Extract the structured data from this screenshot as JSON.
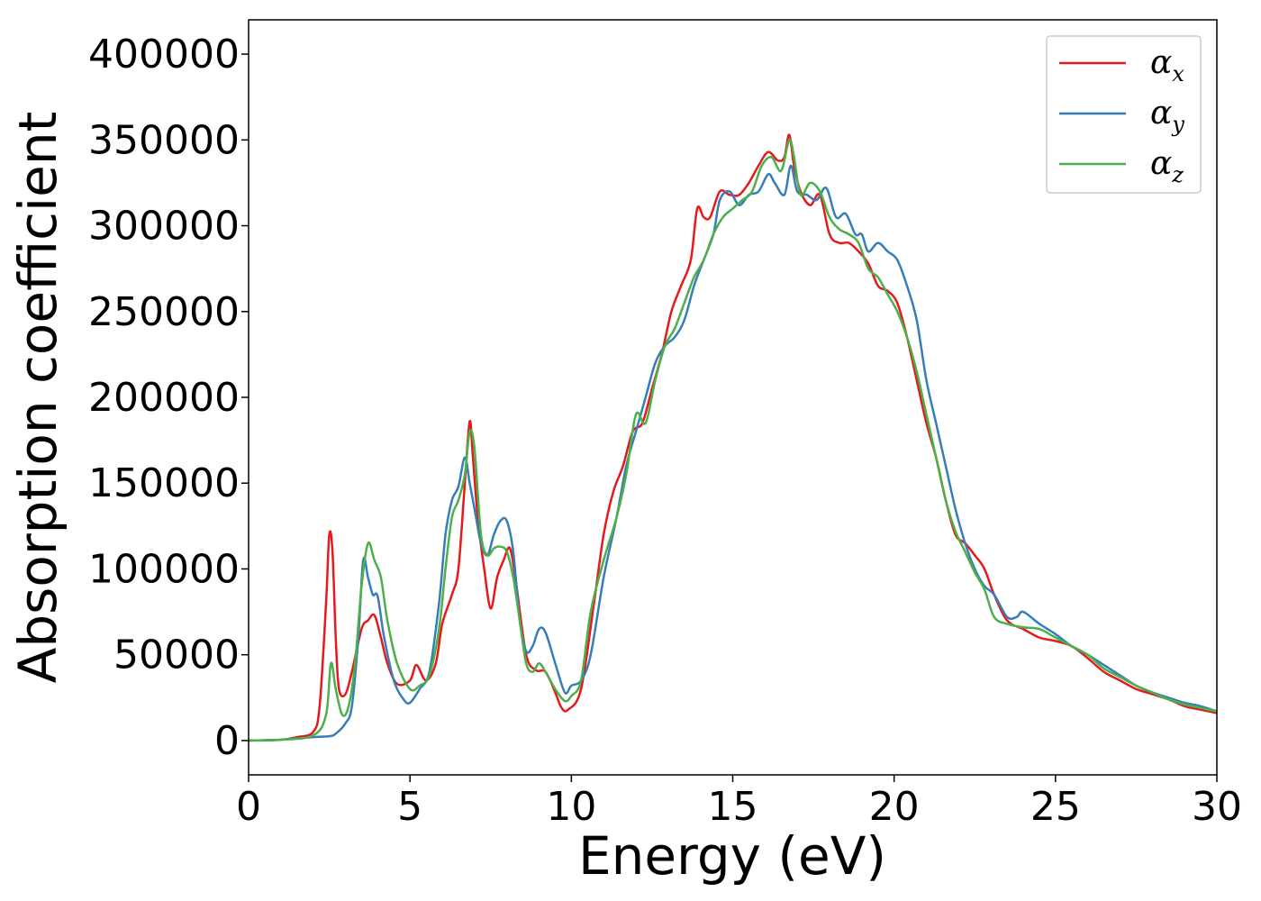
{
  "chart_data": {
    "type": "line",
    "title": "",
    "xlabel": "Energy (eV)",
    "ylabel": "Absorption coefficient",
    "xlim": [
      0,
      30
    ],
    "ylim": [
      -20000,
      420000
    ],
    "xticks": [
      0,
      5,
      10,
      15,
      20,
      25,
      30
    ],
    "xtick_labels": [
      "0",
      "5",
      "10",
      "15",
      "20",
      "25",
      "30"
    ],
    "yticks": [
      0,
      50000,
      100000,
      150000,
      200000,
      250000,
      300000,
      350000,
      400000
    ],
    "ytick_labels": [
      "0",
      "50000",
      "100000",
      "150000",
      "200000",
      "250000",
      "300000",
      "350000",
      "400000"
    ],
    "grid": false,
    "legend_position": "top-right",
    "series": [
      {
        "name": "α_x",
        "label_base": "α",
        "label_sub": "x",
        "color": "#e41a1c",
        "x": [
          0,
          1,
          1.5,
          2,
          2.2,
          2.4,
          2.5,
          2.6,
          2.7,
          2.8,
          3.0,
          3.2,
          3.5,
          3.7,
          3.9,
          4.1,
          4.3,
          4.6,
          5.0,
          5.2,
          5.5,
          5.8,
          6.0,
          6.3,
          6.5,
          6.7,
          6.85,
          6.95,
          7.1,
          7.3,
          7.5,
          7.7,
          7.9,
          8.1,
          8.3,
          8.6,
          8.9,
          9.2,
          9.5,
          9.7,
          9.9,
          10.3,
          10.7,
          11.0,
          11.3,
          11.6,
          11.9,
          12.2,
          12.5,
          12.8,
          13.1,
          13.4,
          13.7,
          13.9,
          14.1,
          14.3,
          14.6,
          14.9,
          15.2,
          15.5,
          15.8,
          16.1,
          16.4,
          16.6,
          16.75,
          16.9,
          17.1,
          17.4,
          17.7,
          18.0,
          18.3,
          18.6,
          18.9,
          19.2,
          19.5,
          19.8,
          20.1,
          20.4,
          20.7,
          21.0,
          21.3,
          21.6,
          21.9,
          22.2,
          22.5,
          22.8,
          23.1,
          23.5,
          24.0,
          24.5,
          25.0,
          25.5,
          26.0,
          26.5,
          27.0,
          27.5,
          28.0,
          28.5,
          29.0,
          29.5,
          30.0
        ],
        "y": [
          0,
          500,
          2000,
          5000,
          20000,
          80000,
          120000,
          110000,
          60000,
          30000,
          27000,
          40000,
          65000,
          70000,
          73000,
          60000,
          45000,
          33000,
          35000,
          44000,
          35000,
          45000,
          68000,
          85000,
          100000,
          150000,
          186000,
          165000,
          130000,
          100000,
          77000,
          95000,
          105000,
          112000,
          90000,
          50000,
          41000,
          40000,
          28000,
          19000,
          18000,
          30000,
          80000,
          120000,
          145000,
          160000,
          180000,
          185000,
          205000,
          225000,
          250000,
          265000,
          280000,
          310000,
          305000,
          305000,
          320000,
          318000,
          318000,
          325000,
          335000,
          343000,
          338000,
          340000,
          353000,
          335000,
          320000,
          312000,
          318000,
          295000,
          290000,
          290000,
          285000,
          278000,
          265000,
          262000,
          255000,
          235000,
          210000,
          185000,
          165000,
          140000,
          120000,
          115000,
          108000,
          100000,
          85000,
          70000,
          65000,
          60000,
          58000,
          55000,
          48000,
          40000,
          35000,
          30000,
          27000,
          24000,
          20000,
          18000,
          16000
        ]
      },
      {
        "name": "α_y",
        "label_base": "α",
        "label_sub": "y",
        "color": "#377eb8",
        "x": [
          0,
          1,
          2,
          2.5,
          2.7,
          3.0,
          3.2,
          3.4,
          3.55,
          3.7,
          3.85,
          4.0,
          4.2,
          4.5,
          4.8,
          5.0,
          5.3,
          5.6,
          5.9,
          6.1,
          6.3,
          6.5,
          6.7,
          6.85,
          7.0,
          7.2,
          7.4,
          7.6,
          7.8,
          8.0,
          8.2,
          8.4,
          8.6,
          8.8,
          9.0,
          9.2,
          9.5,
          9.8,
          10.0,
          10.3,
          10.6,
          11.0,
          11.4,
          11.7,
          12.0,
          12.3,
          12.6,
          12.9,
          13.2,
          13.5,
          13.8,
          14.1,
          14.4,
          14.6,
          14.9,
          15.2,
          15.5,
          15.8,
          16.1,
          16.3,
          16.6,
          16.8,
          17.0,
          17.3,
          17.6,
          17.9,
          18.2,
          18.5,
          18.8,
          19.0,
          19.2,
          19.5,
          19.8,
          20.1,
          20.4,
          20.7,
          21.0,
          21.3,
          21.6,
          21.9,
          22.2,
          22.5,
          22.8,
          23.1,
          23.5,
          23.8,
          24.0,
          24.5,
          25.0,
          25.5,
          26.0,
          26.5,
          27.0,
          27.5,
          28.0,
          28.5,
          29.0,
          29.5,
          30.0
        ],
        "y": [
          0,
          500,
          2000,
          2500,
          4000,
          10000,
          20000,
          60000,
          105000,
          95000,
          85000,
          84000,
          60000,
          35000,
          24000,
          22000,
          30000,
          40000,
          80000,
          120000,
          140000,
          148000,
          165000,
          150000,
          135000,
          115000,
          108000,
          120000,
          128000,
          128000,
          110000,
          70000,
          52000,
          55000,
          65000,
          63000,
          45000,
          28000,
          32000,
          35000,
          50000,
          95000,
          130000,
          160000,
          180000,
          200000,
          220000,
          230000,
          235000,
          245000,
          265000,
          280000,
          295000,
          315000,
          320000,
          312000,
          318000,
          320000,
          330000,
          325000,
          318000,
          335000,
          320000,
          318000,
          315000,
          322000,
          305000,
          307000,
          295000,
          295000,
          285000,
          290000,
          285000,
          280000,
          265000,
          245000,
          210000,
          185000,
          160000,
          135000,
          115000,
          100000,
          90000,
          85000,
          72000,
          72000,
          75000,
          68000,
          62000,
          55000,
          50000,
          44000,
          38000,
          32000,
          28000,
          25000,
          22000,
          20000,
          17000
        ]
      },
      {
        "name": "α_z",
        "label_base": "α",
        "label_sub": "z",
        "color": "#4daf4a",
        "x": [
          0,
          1,
          2,
          2.4,
          2.55,
          2.7,
          2.9,
          3.1,
          3.3,
          3.5,
          3.7,
          3.9,
          4.1,
          4.3,
          4.6,
          5.0,
          5.3,
          5.6,
          5.9,
          6.1,
          6.3,
          6.5,
          6.7,
          6.85,
          7.0,
          7.2,
          7.4,
          7.6,
          7.8,
          8.0,
          8.2,
          8.4,
          8.6,
          8.8,
          9.0,
          9.2,
          9.5,
          9.8,
          10.0,
          10.3,
          10.6,
          11.0,
          11.4,
          11.7,
          12.0,
          12.3,
          12.6,
          12.9,
          13.2,
          13.5,
          13.8,
          14.1,
          14.4,
          14.7,
          15.0,
          15.3,
          15.6,
          15.9,
          16.2,
          16.5,
          16.75,
          16.9,
          17.1,
          17.4,
          17.7,
          18.0,
          18.3,
          18.6,
          18.9,
          19.2,
          19.5,
          19.8,
          20.1,
          20.4,
          20.7,
          21.0,
          21.3,
          21.6,
          21.9,
          22.2,
          22.5,
          22.8,
          23.1,
          23.5,
          24.0,
          24.5,
          25.0,
          25.5,
          26.0,
          26.5,
          27.0,
          27.5,
          28.0,
          28.5,
          29.0,
          29.5,
          30.0
        ],
        "y": [
          0,
          500,
          3000,
          15000,
          45000,
          30000,
          15000,
          20000,
          45000,
          90000,
          115000,
          105000,
          95000,
          70000,
          45000,
          30000,
          32000,
          38000,
          65000,
          100000,
          130000,
          140000,
          155000,
          180000,
          170000,
          120000,
          108000,
          112000,
          113000,
          110000,
          95000,
          70000,
          45000,
          40000,
          45000,
          40000,
          30000,
          23000,
          26000,
          35000,
          75000,
          105000,
          130000,
          155000,
          190000,
          185000,
          210000,
          230000,
          240000,
          255000,
          270000,
          280000,
          295000,
          305000,
          310000,
          315000,
          320000,
          335000,
          340000,
          332000,
          350000,
          340000,
          318000,
          325000,
          320000,
          305000,
          298000,
          295000,
          290000,
          275000,
          270000,
          260000,
          250000,
          235000,
          215000,
          190000,
          165000,
          140000,
          122000,
          110000,
          98000,
          88000,
          72000,
          68000,
          66000,
          65000,
          60000,
          55000,
          50000,
          42000,
          37000,
          32000,
          28000,
          24000,
          21000,
          19000,
          17000
        ]
      }
    ]
  }
}
